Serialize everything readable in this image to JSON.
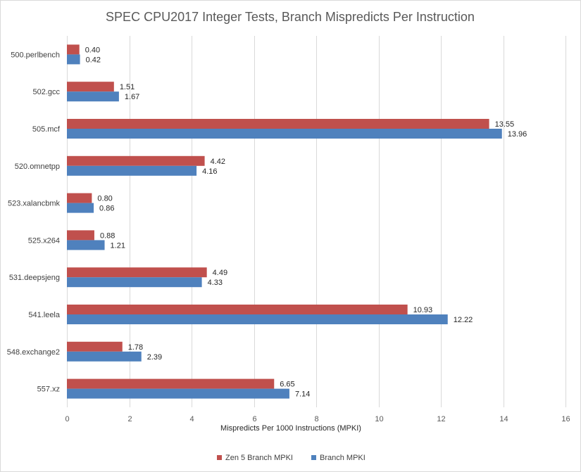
{
  "chart_data": {
    "type": "bar",
    "orientation": "horizontal",
    "title": "SPEC CPU2017 Integer Tests, Branch Mispredicts Per Instruction",
    "xlabel": "Mispredicts Per 1000 Instructions (MPKI)",
    "ylabel": "",
    "xlim": [
      0,
      16
    ],
    "xticks": [
      0,
      2,
      4,
      6,
      8,
      10,
      12,
      14,
      16
    ],
    "grid": true,
    "legend_position": "bottom",
    "categories": [
      "500.perlbench",
      "502.gcc",
      "505.mcf",
      "520.omnetpp",
      "523.xalancbmk",
      "525.x264",
      "531.deepsjeng",
      "541.leela",
      "548.exchange2",
      "557.xz"
    ],
    "series": [
      {
        "name": "Zen 5 Branch MPKI",
        "color": "#c0504d",
        "values": [
          0.4,
          1.51,
          13.55,
          4.42,
          0.8,
          0.88,
          4.49,
          10.93,
          1.78,
          6.65
        ],
        "labels": [
          "0.40",
          "1.51",
          "13.55",
          "4.42",
          "0.80",
          "0.88",
          "4.49",
          "10.93",
          "1.78",
          "6.65"
        ]
      },
      {
        "name": "Branch MPKI",
        "color": "#4f81bd",
        "values": [
          0.42,
          1.67,
          13.96,
          4.16,
          0.86,
          1.21,
          4.33,
          12.22,
          2.39,
          7.14
        ],
        "labels": [
          "0.42",
          "1.67",
          "13.96",
          "4.16",
          "0.86",
          "1.21",
          "4.33",
          "12.22",
          "2.39",
          "7.14"
        ]
      }
    ]
  }
}
